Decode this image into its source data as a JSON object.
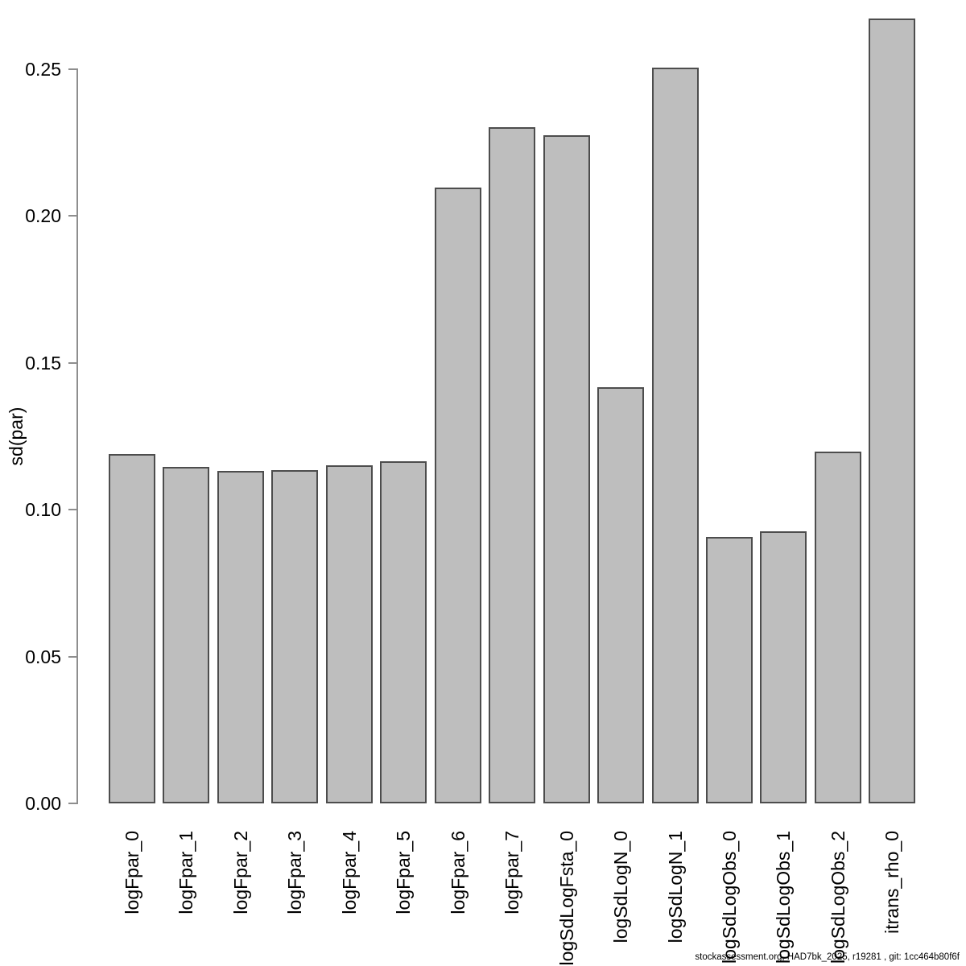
{
  "chart_data": {
    "type": "bar",
    "title": "",
    "xlabel": "",
    "ylabel": "sd(par)",
    "categories": [
      "logFpar_0",
      "logFpar_1",
      "logFpar_2",
      "logFpar_3",
      "logFpar_4",
      "logFpar_5",
      "logFpar_6",
      "logFpar_7",
      "logSdLogFsta_0",
      "logSdLogN_0",
      "logSdLogN_1",
      "logSdLogObs_0",
      "logSdLogObs_1",
      "logSdLogObs_2",
      "itrans_rho_0"
    ],
    "values": [
      0.119,
      0.1146,
      0.1133,
      0.1135,
      0.1151,
      0.1165,
      0.2097,
      0.2303,
      0.2275,
      0.1417,
      0.2506,
      0.0907,
      0.0927,
      0.1198,
      0.2673
    ],
    "ytick_labels": [
      "0.00",
      "0.05",
      "0.10",
      "0.15",
      "0.20",
      "0.25"
    ],
    "ytick_values": [
      0,
      0.05,
      0.1,
      0.15,
      0.2,
      0.25
    ],
    "ylim": [
      0,
      0.2673
    ],
    "grid": false,
    "legend": null,
    "bar_fill_color": "#bebebe",
    "bar_border_color": "#4d4d4d",
    "axis_color": "#8e8e8e"
  },
  "footer": {
    "caption": "stockassessment.org, HAD7bk_2025, r19281 , git: 1cc464b80f6f"
  }
}
